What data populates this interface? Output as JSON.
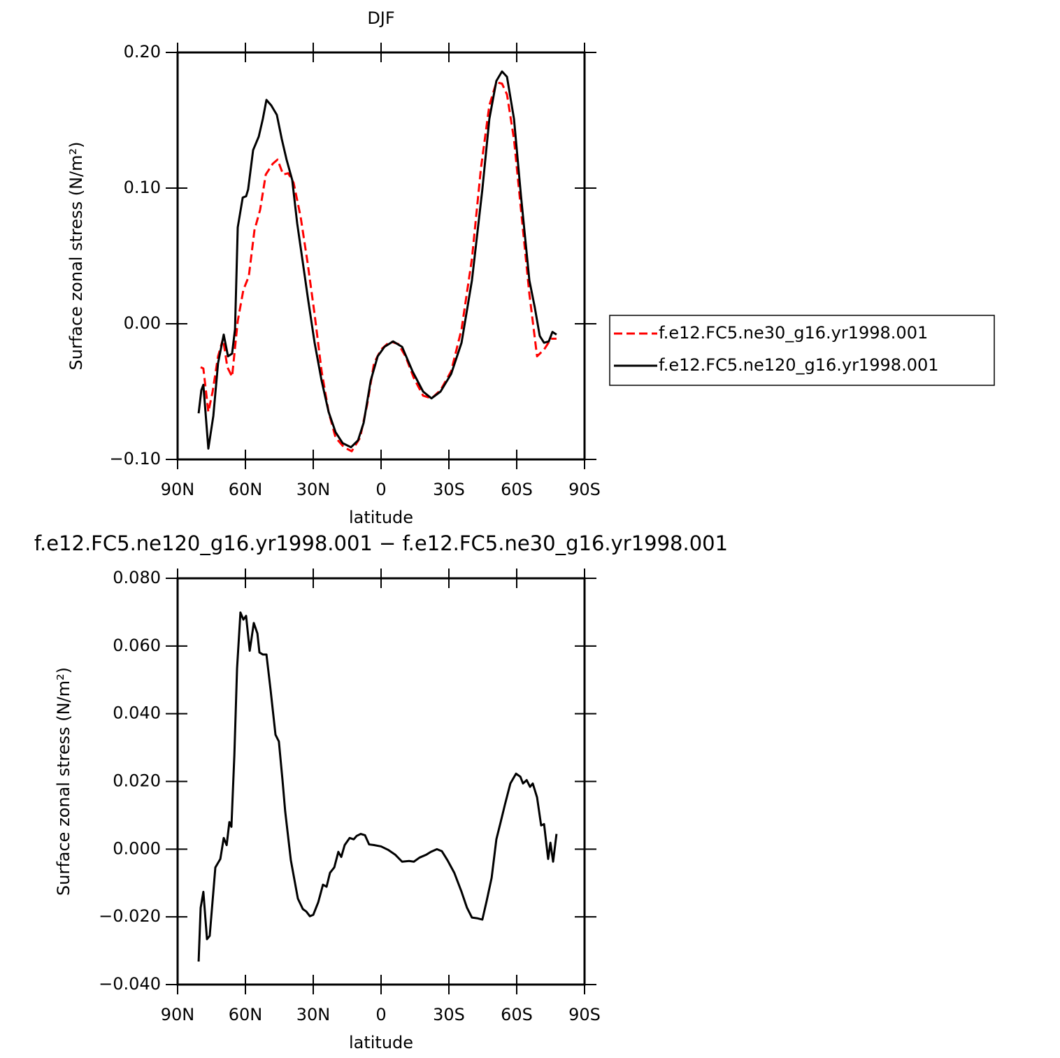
{
  "chart_data": [
    {
      "type": "line",
      "title": "DJF",
      "xlabel": "latitude",
      "ylabel": "Surface zonal stress (N/m²)",
      "xlim": [
        90,
        -90
      ],
      "ylim": [
        -0.1,
        0.2
      ],
      "xticks": [
        {
          "value": 90,
          "label": "90N"
        },
        {
          "value": 60,
          "label": "60N"
        },
        {
          "value": 30,
          "label": "30N"
        },
        0,
        {
          "value": -30,
          "label": "30S"
        },
        {
          "value": -60,
          "label": "60S"
        },
        {
          "value": -90,
          "label": "90S"
        }
      ],
      "yticks": [
        {
          "value": -0.1,
          "label": "−0.10"
        },
        {
          "value": 0,
          "label": "0.00"
        },
        {
          "value": 0.1,
          "label": "0.10"
        },
        {
          "value": 0.2,
          "label": "0.20"
        }
      ],
      "legend": "right",
      "series": [
        {
          "name": "f.e12.FC5.ne30_g16.yr1998.001",
          "color": "#ff0000",
          "style": "dashed",
          "x": [
            79.8,
            78.6,
            76.4,
            74.5,
            72.1,
            69.9,
            68.0,
            65.9,
            63.4,
            60.9,
            58.5,
            56.0,
            53.5,
            51.0,
            47.9,
            45.8,
            43.3,
            41.1,
            38.7,
            35.6,
            32.5,
            29.4,
            26.3,
            23.2,
            20.1,
            16.4,
            13.0,
            9.3,
            6.2,
            3.1,
            0,
            -4.0,
            -7.7,
            -10.8,
            -14.5,
            -18.6,
            -22.3,
            -26.3,
            -31.0,
            -35.6,
            -40.2,
            -44.2,
            -47.9,
            -51.0,
            -53.5,
            -55.7,
            -58.8,
            -61.9,
            -65.6,
            -69.0,
            -72.1,
            -75.2,
            -77.6
          ],
          "values": [
            -0.032,
            -0.033,
            -0.065,
            -0.05,
            -0.024,
            -0.011,
            -0.032,
            -0.039,
            0.002,
            0.025,
            0.035,
            0.069,
            0.084,
            0.11,
            0.118,
            0.121,
            0.11,
            0.111,
            0.104,
            0.079,
            0.045,
            0.007,
            -0.035,
            -0.065,
            -0.084,
            -0.091,
            -0.094,
            -0.084,
            -0.06,
            -0.029,
            -0.019,
            -0.013,
            -0.015,
            -0.024,
            -0.04,
            -0.053,
            -0.055,
            -0.049,
            -0.035,
            -0.004,
            0.048,
            0.115,
            0.161,
            0.178,
            0.177,
            0.169,
            0.136,
            0.084,
            0.022,
            -0.024,
            -0.019,
            -0.011,
            -0.011
          ]
        },
        {
          "name": "f.e12.FC5.ne120_g16.yr1998.001",
          "color": "#000000",
          "style": "solid",
          "x": [
            80.7,
            79.5,
            78.6,
            76.4,
            74.2,
            72.1,
            69.6,
            67.7,
            65.9,
            64.6,
            63.4,
            61.2,
            59.7,
            58.8,
            56.6,
            54.1,
            52.3,
            50.7,
            48.6,
            46.1,
            43.9,
            41.8,
            39.3,
            37.1,
            34.6,
            32.2,
            29.4,
            26.3,
            23.2,
            20.1,
            17.0,
            13.3,
            10.2,
            7.7,
            4.6,
            1.5,
            -1.5,
            -5.3,
            -9.3,
            -13.9,
            -18.6,
            -22.3,
            -26.3,
            -31.0,
            -35.6,
            -40.2,
            -44.8,
            -47.9,
            -51.0,
            -53.5,
            -55.7,
            -58.8,
            -61.9,
            -65.6,
            -68.0,
            -70.2,
            -72.1,
            -74.2,
            -75.8,
            -77.6
          ],
          "values": [
            -0.066,
            -0.049,
            -0.045,
            -0.092,
            -0.068,
            -0.029,
            -0.008,
            -0.024,
            -0.022,
            -0.004,
            0.071,
            0.093,
            0.094,
            0.099,
            0.128,
            0.138,
            0.151,
            0.165,
            0.161,
            0.154,
            0.136,
            0.121,
            0.106,
            0.074,
            0.045,
            0.017,
            -0.014,
            -0.042,
            -0.065,
            -0.08,
            -0.088,
            -0.091,
            -0.086,
            -0.073,
            -0.042,
            -0.024,
            -0.017,
            -0.013,
            -0.017,
            -0.035,
            -0.05,
            -0.055,
            -0.05,
            -0.037,
            -0.014,
            0.032,
            0.099,
            0.151,
            0.179,
            0.186,
            0.182,
            0.151,
            0.094,
            0.032,
            0.012,
            -0.009,
            -0.014,
            -0.013,
            -0.006,
            -0.008
          ]
        }
      ]
    },
    {
      "type": "line",
      "title": "f.e12.FC5.ne120_g16.yr1998.001 − f.e12.FC5.ne30_g16.yr1998.001",
      "xlabel": "latitude",
      "ylabel": "Surface zonal stress (N/m²)",
      "xlim": [
        90,
        -90
      ],
      "ylim": [
        -0.04,
        0.08
      ],
      "xticks": [
        {
          "value": 90,
          "label": "90N"
        },
        {
          "value": 60,
          "label": "60N"
        },
        {
          "value": 30,
          "label": "30N"
        },
        0,
        {
          "value": -30,
          "label": "30S"
        },
        {
          "value": -60,
          "label": "60S"
        },
        {
          "value": -90,
          "label": "90S"
        }
      ],
      "yticks": [
        {
          "value": -0.04,
          "label": "−0.040"
        },
        {
          "value": -0.02,
          "label": "−0.020"
        },
        {
          "value": 0,
          "label": "0.000"
        },
        {
          "value": 0.02,
          "label": "0.020"
        },
        {
          "value": 0.04,
          "label": "0.040"
        },
        {
          "value": 0.06,
          "label": "0.060"
        },
        {
          "value": 0.08,
          "label": "0.080"
        }
      ],
      "series": [
        {
          "color": "#000000",
          "style": "solid",
          "x": [
            80.7,
            79.8,
            78.6,
            77.0,
            75.8,
            73.3,
            71.1,
            69.6,
            68.3,
            67.1,
            66.2,
            64.9,
            63.7,
            62.2,
            60.9,
            59.7,
            58.1,
            56.3,
            54.7,
            53.8,
            52.3,
            50.7,
            48.9,
            46.7,
            45.2,
            43.6,
            42.4,
            39.9,
            36.8,
            34.6,
            33.1,
            31.5,
            30.0,
            27.8,
            25.7,
            24.1,
            22.6,
            20.7,
            18.9,
            17.6,
            16.1,
            13.9,
            12.1,
            10.8,
            9.0,
            7.1,
            5.3,
            3.1,
            0,
            -3.1,
            -6.2,
            -9.3,
            -12.4,
            -14.5,
            -17.0,
            -20.1,
            -22.0,
            -24.7,
            -26.9,
            -29.4,
            -32.4,
            -35.6,
            -38.0,
            -40.2,
            -42.4,
            -44.8,
            -46.7,
            -48.9,
            -51.0,
            -52.9,
            -54.8,
            -57.2,
            -59.7,
            -61.6,
            -62.8,
            -64.4,
            -65.9,
            -67.1,
            -69.0,
            -70.8,
            -72.1,
            -73.9,
            -74.9,
            -76.1,
            -77.6
          ],
          "values": [
            -0.0332,
            -0.0173,
            -0.0126,
            -0.0266,
            -0.0256,
            -0.0054,
            -0.0029,
            0.0033,
            0.0012,
            0.008,
            0.0066,
            0.0276,
            0.0534,
            0.0699,
            0.0678,
            0.0689,
            0.0586,
            0.0668,
            0.0637,
            0.0581,
            0.0575,
            0.0575,
            0.0472,
            0.0338,
            0.0318,
            0.0204,
            0.0111,
            -0.0033,
            -0.0146,
            -0.0177,
            -0.0184,
            -0.0198,
            -0.0194,
            -0.0157,
            -0.0105,
            -0.0111,
            -0.007,
            -0.0054,
            -0.0008,
            -0.0023,
            0.0012,
            0.0033,
            0.0029,
            0.0039,
            0.0045,
            0.0041,
            0.0014,
            0.0012,
            0.0008,
            -0.0002,
            -0.0016,
            -0.0037,
            -0.0035,
            -0.0037,
            -0.0025,
            -0.0016,
            -0.0008,
            0,
            -0.0006,
            -0.0033,
            -0.007,
            -0.0126,
            -0.0173,
            -0.0202,
            -0.0204,
            -0.0208,
            -0.0153,
            -0.0085,
            0.0029,
            0.008,
            0.0132,
            0.0194,
            0.0223,
            0.0214,
            0.0194,
            0.0204,
            0.0184,
            0.0194,
            0.0153,
            0.007,
            0.0074,
            -0.0029,
            0.0019,
            -0.0037,
            0.0045
          ]
        }
      ]
    }
  ]
}
